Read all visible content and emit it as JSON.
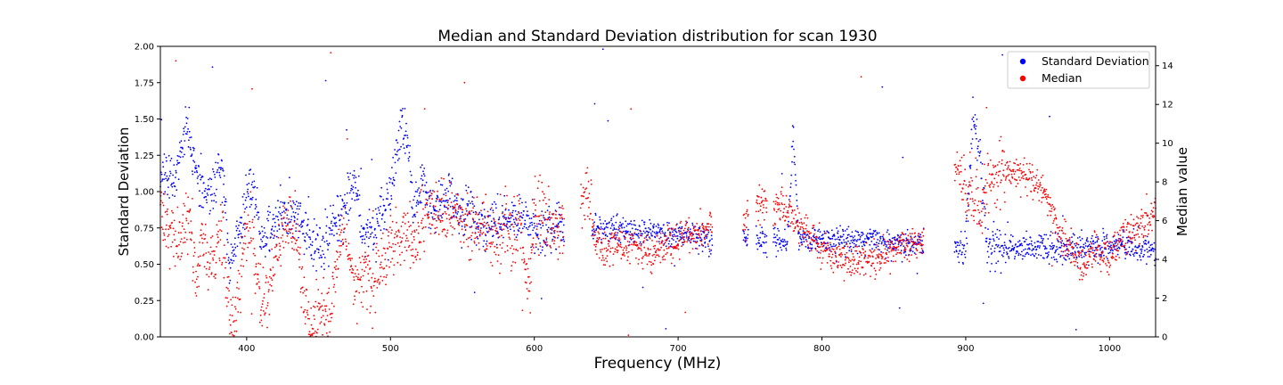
{
  "chart_data": {
    "type": "scatter",
    "title": "Median and Standard Deviation distribution for scan 1930",
    "xlabel": "Frequency (MHz)",
    "ylabel_left": "Standard Deviation",
    "ylabel_right": "Median value",
    "xlim": [
      340,
      1032
    ],
    "ylim_left": [
      0,
      2.0
    ],
    "ylim_right": [
      0,
      15
    ],
    "x_ticks": [
      400,
      500,
      600,
      700,
      800,
      900,
      1000
    ],
    "y_ticks_left": [
      "0.00",
      "0.25",
      "0.50",
      "0.75",
      "1.00",
      "1.25",
      "1.50",
      "1.75",
      "2.00"
    ],
    "y_ticks_right": [
      0,
      2,
      4,
      6,
      8,
      10,
      12,
      14
    ],
    "grid": false,
    "legend_position": "top-right",
    "colors": {
      "std": "#0000ff",
      "median": "#ff0000"
    },
    "series": [
      {
        "name": "Standard Deviation",
        "axis": "left",
        "color": "#0000ff",
        "profile": [
          [
            340,
            1.12
          ],
          [
            350,
            1.05
          ],
          [
            358,
            1.5
          ],
          [
            363,
            1.2
          ],
          [
            370,
            1.0
          ],
          [
            380,
            1.1
          ],
          [
            384,
            1.1
          ],
          [
            388,
            0.45
          ],
          [
            395,
            0.7
          ],
          [
            400,
            1.0
          ],
          [
            405,
            1.02
          ],
          [
            410,
            0.65
          ],
          [
            420,
            0.8
          ],
          [
            430,
            0.85
          ],
          [
            435,
            0.88
          ],
          [
            440,
            0.7
          ],
          [
            445,
            0.62
          ],
          [
            455,
            0.62
          ],
          [
            460,
            0.78
          ],
          [
            468,
            0.85
          ],
          [
            475,
            1.15
          ],
          [
            480,
            0.7
          ],
          [
            490,
            0.75
          ],
          [
            500,
            1.0
          ],
          [
            508,
            1.45
          ],
          [
            512,
            1.4
          ],
          [
            516,
            0.85
          ],
          [
            522,
            1.05
          ],
          [
            528,
            0.88
          ],
          [
            535,
            0.9
          ],
          [
            540,
            1.0
          ],
          [
            548,
            0.82
          ],
          [
            555,
            0.9
          ],
          [
            560,
            0.78
          ],
          [
            565,
            0.78
          ],
          [
            590,
            0.8
          ],
          [
            600,
            0.78
          ],
          [
            615,
            0.76
          ],
          [
            642,
            0.74
          ],
          [
            680,
            0.72
          ],
          [
            700,
            0.7
          ],
          [
            712,
            0.7
          ],
          [
            718,
            0.68
          ],
          [
            760,
            0.66
          ],
          [
            770,
            0.65
          ],
          [
            776,
            0.66
          ],
          [
            780,
            1.4
          ],
          [
            784,
            0.66
          ],
          [
            800,
            0.66
          ],
          [
            840,
            0.67
          ],
          [
            845,
            0.64
          ],
          [
            870,
            0.64
          ],
          [
            893,
            0.62
          ],
          [
            900,
            0.62
          ],
          [
            905,
            1.5
          ],
          [
            910,
            1.2
          ],
          [
            915,
            0.62
          ],
          [
            960,
            0.61
          ],
          [
            1000,
            0.62
          ],
          [
            1010,
            0.62
          ],
          [
            1020,
            0.6
          ],
          [
            1030,
            0.6
          ]
        ],
        "gaps": [
          [
            621,
            640
          ],
          [
            724,
            745
          ],
          [
            749,
            754
          ],
          [
            762,
            766
          ],
          [
            871,
            892
          ]
        ]
      },
      {
        "name": "Median",
        "axis": "right",
        "color": "#ff0000",
        "profile": [
          [
            340,
            6.3
          ],
          [
            345,
            5.5
          ],
          [
            352,
            5.0
          ],
          [
            360,
            6.0
          ],
          [
            365,
            3.0
          ],
          [
            370,
            5.0
          ],
          [
            375,
            4.0
          ],
          [
            384,
            5.0
          ],
          [
            388,
            0.8
          ],
          [
            392,
            0.5
          ],
          [
            398,
            5.0
          ],
          [
            403,
            6.2
          ],
          [
            408,
            2.5
          ],
          [
            415,
            1.8
          ],
          [
            420,
            4.0
          ],
          [
            428,
            5.8
          ],
          [
            435,
            5.6
          ],
          [
            440,
            1.5
          ],
          [
            445,
            0.5
          ],
          [
            452,
            1.5
          ],
          [
            458,
            0.8
          ],
          [
            462,
            3.5
          ],
          [
            466,
            5.0
          ],
          [
            470,
            4.8
          ],
          [
            476,
            2.5
          ],
          [
            482,
            3.5
          ],
          [
            487,
            2.5
          ],
          [
            490,
            3.5
          ],
          [
            495,
            4.0
          ],
          [
            500,
            4.5
          ],
          [
            505,
            5.2
          ],
          [
            510,
            5.5
          ],
          [
            518,
            4.8
          ],
          [
            525,
            6.2
          ],
          [
            530,
            6.5
          ],
          [
            540,
            6.2
          ],
          [
            545,
            7.0
          ],
          [
            550,
            5.8
          ],
          [
            560,
            5.5
          ],
          [
            565,
            6.0
          ],
          [
            570,
            5.0
          ],
          [
            575,
            4.8
          ],
          [
            580,
            6.0
          ],
          [
            585,
            4.5
          ],
          [
            590,
            6.2
          ],
          [
            595,
            2.5
          ],
          [
            598,
            3.0
          ],
          [
            600,
            6.5
          ],
          [
            605,
            6.0
          ],
          [
            615,
            5.8
          ],
          [
            638,
            7.5
          ],
          [
            642,
            5.0
          ],
          [
            650,
            4.5
          ],
          [
            660,
            4.8
          ],
          [
            670,
            4.7
          ],
          [
            680,
            4.2
          ],
          [
            690,
            4.6
          ],
          [
            700,
            5.0
          ],
          [
            710,
            5.2
          ],
          [
            718,
            5.5
          ],
          [
            730,
            6.0
          ],
          [
            745,
            6.2
          ],
          [
            756,
            7.0
          ],
          [
            768,
            6.8
          ],
          [
            775,
            6.6
          ],
          [
            780,
            6.0
          ],
          [
            790,
            5.2
          ],
          [
            800,
            4.6
          ],
          [
            810,
            4.2
          ],
          [
            820,
            3.9
          ],
          [
            830,
            3.9
          ],
          [
            840,
            4.0
          ],
          [
            850,
            4.5
          ],
          [
            860,
            4.8
          ],
          [
            870,
            5.0
          ],
          [
            893,
            9.0
          ],
          [
            900,
            7.5
          ],
          [
            910,
            7.0
          ],
          [
            915,
            8.0
          ],
          [
            930,
            8.5
          ],
          [
            945,
            8.2
          ],
          [
            955,
            7.5
          ],
          [
            965,
            5.5
          ],
          [
            975,
            4.5
          ],
          [
            982,
            3.6
          ],
          [
            990,
            4.5
          ],
          [
            1000,
            4.2
          ],
          [
            1010,
            5.2
          ],
          [
            1020,
            5.6
          ],
          [
            1032,
            6.5
          ]
        ],
        "gaps": [
          [
            621,
            632
          ],
          [
            724,
            745
          ],
          [
            749,
            754
          ],
          [
            762,
            766
          ],
          [
            871,
            892
          ]
        ]
      }
    ]
  }
}
